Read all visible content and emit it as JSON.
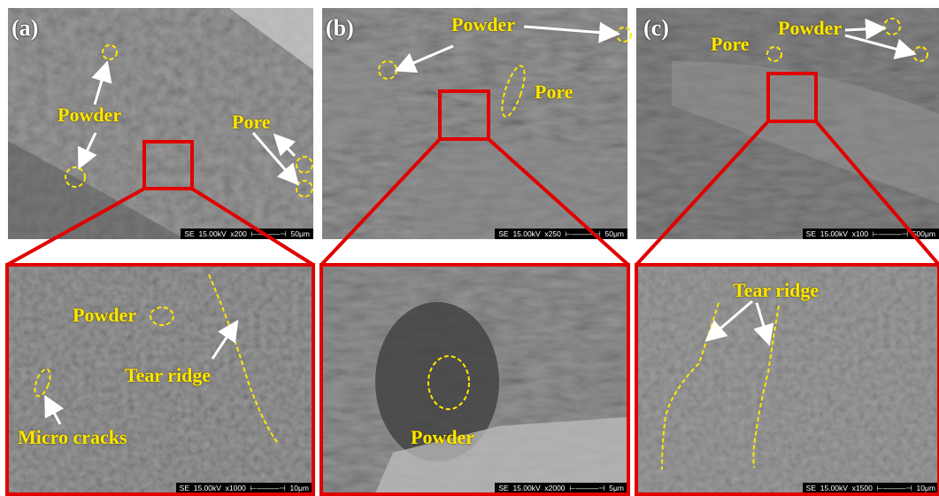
{
  "colors": {
    "annotation": "#ffe600",
    "highlight_box": "#e00000",
    "panel_letter": "#ffffff"
  },
  "panels": [
    {
      "letter": "(a)",
      "scale": "SE  15.00kV  x200  ⊢———⊣  50μm",
      "labels": {
        "powder": "Powder",
        "pore": "Pore"
      }
    },
    {
      "letter": "(b)",
      "scale": "SE  15.00kV  x250  ⊢———⊣  50μm",
      "labels": {
        "powder": "Powder",
        "pore": "Pore"
      }
    },
    {
      "letter": "(c)",
      "scale": "SE  15.00kV  x100  ⊢———⊣  500μm",
      "labels": {
        "pore": "Pore",
        "powder": "Powder"
      }
    }
  ],
  "zooms": [
    {
      "scale": "SE  15.00kV  x1000  ⊢———⊣  10μm",
      "labels": {
        "powder": "Powder",
        "tear_ridge": "Tear ridge",
        "micro_cracks": "Micro cracks"
      }
    },
    {
      "scale": "SE  15.00kV  x2000  ⊢———⊣  5μm",
      "labels": {
        "powder": "Powder"
      }
    },
    {
      "scale": "SE  15.00kV  x1500  ⊢———⊣  10μm",
      "labels": {
        "tear_ridge": "Tear ridge"
      }
    }
  ]
}
